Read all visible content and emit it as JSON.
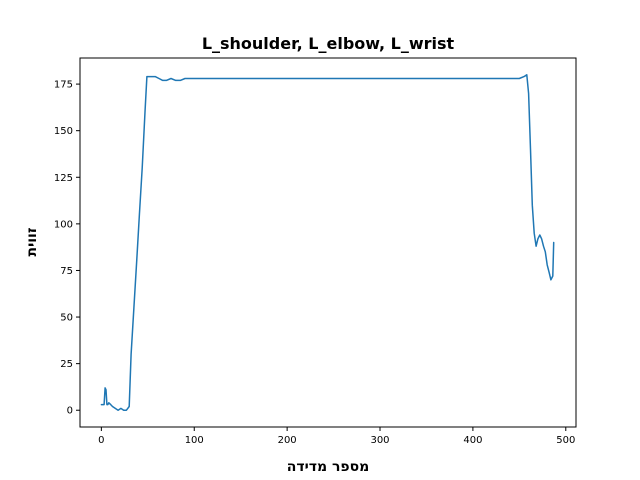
{
  "chart_data": {
    "type": "line",
    "title": "L_shoulder, L_elbow, L_wrist",
    "xlabel": "מספר מדידה",
    "ylabel": "זווית",
    "xlim": [
      -23,
      511
    ],
    "ylim": [
      -9,
      189
    ],
    "xticks": [
      0,
      100,
      200,
      300,
      400,
      500
    ],
    "yticks": [
      0,
      25,
      50,
      75,
      100,
      125,
      150,
      175
    ],
    "grid": false,
    "series": [
      {
        "color": "#1f77b4",
        "x": [
          0,
          3,
          4,
          5,
          6,
          7,
          8,
          10,
          12,
          15,
          18,
          21,
          24,
          27,
          30,
          32,
          35,
          38,
          41,
          44,
          47,
          49,
          52,
          55,
          58,
          62,
          66,
          70,
          75,
          80,
          85,
          90,
          100,
          120,
          150,
          180,
          220,
          250,
          300,
          350,
          400,
          430,
          450,
          455,
          458,
          460,
          462,
          464,
          466,
          468,
          470,
          472,
          474,
          476,
          478,
          480,
          482,
          484,
          486,
          487
        ],
        "y": [
          3,
          3,
          12,
          11,
          3,
          3,
          4,
          3,
          2,
          1,
          0,
          1,
          0,
          0,
          2,
          30,
          55,
          80,
          105,
          130,
          160,
          179,
          179,
          179,
          179,
          178,
          177,
          177,
          178,
          177,
          177,
          178,
          178,
          178,
          178,
          178,
          178,
          178,
          178,
          178,
          178,
          178,
          178,
          179,
          180,
          170,
          140,
          110,
          95,
          88,
          92,
          94,
          92,
          88,
          85,
          78,
          74,
          70,
          72,
          90
        ]
      }
    ]
  }
}
